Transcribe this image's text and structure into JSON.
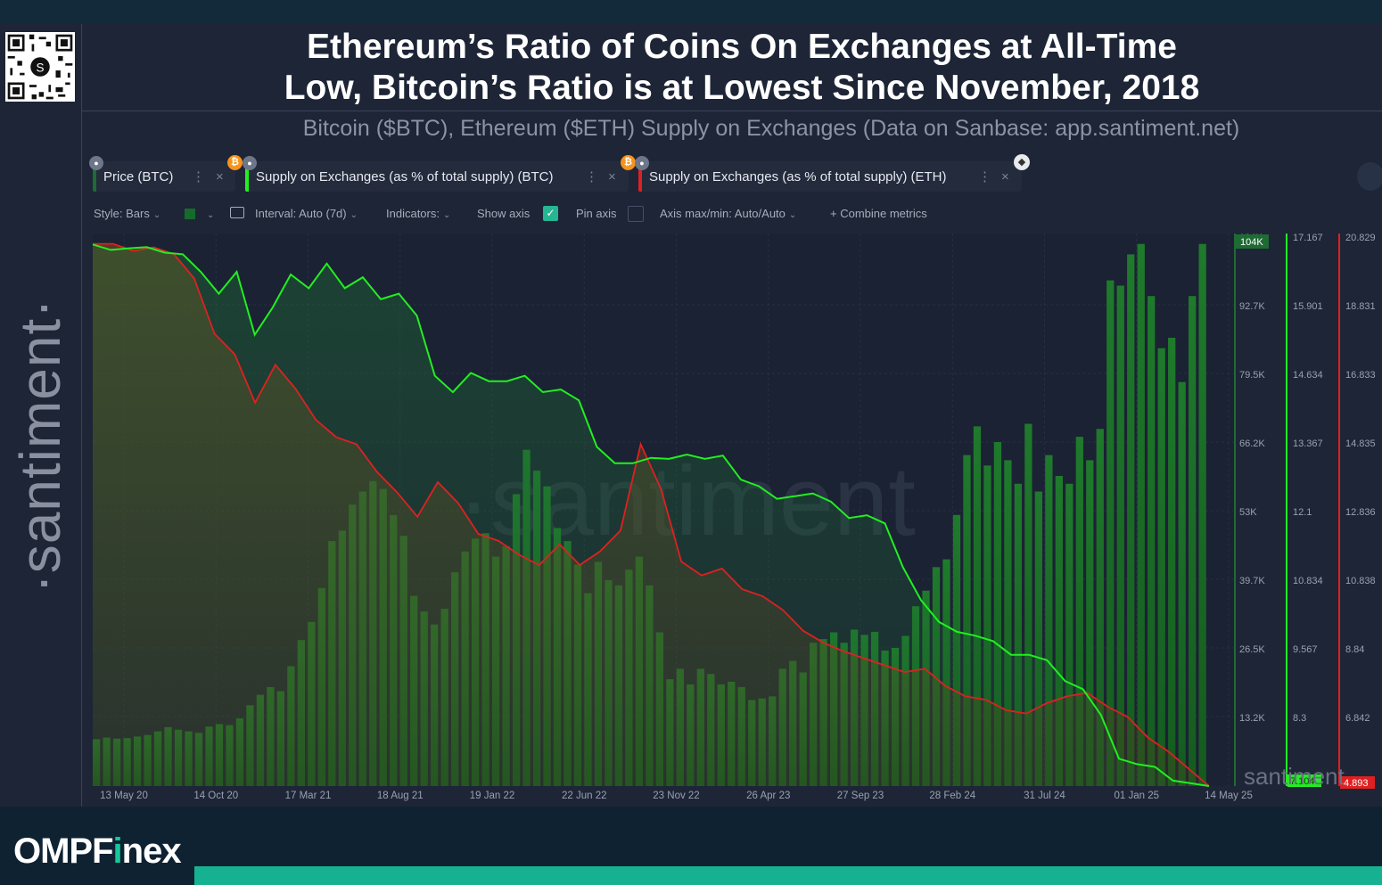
{
  "header": {
    "title_line1": "Ethereum’s Ratio of Coins On Exchanges at All-Time",
    "title_line2": "Low, Bitcoin’s Ratio is at Lowest Since November, 2018",
    "subtitle": "Bitcoin ($BTC), Ethereum ($ETH) Supply on Exchanges (Data on Sanbase: app.santiment.net)"
  },
  "brand": {
    "sidebar_text": "·santiment·",
    "watermark": "·santiment",
    "corner_watermark": "santiment",
    "footer_text_a": "OMPF",
    "footer_text_i": "i",
    "footer_text_b": "nex",
    "accent_color": "#16b191"
  },
  "metric_chips": [
    {
      "label": "Price (BTC)",
      "color": "#1e6b34"
    },
    {
      "label": "Supply on Exchanges (as % of total supply) (BTC)",
      "color": "#22ee22"
    },
    {
      "label": "Supply on Exchanges (as % of total supply) (ETH)",
      "color": "#e02020"
    }
  ],
  "chip_icons": {
    "lock": "lock-icon",
    "btc": "₿",
    "eth": "◆",
    "more": "⋮",
    "close": "×"
  },
  "toolbar": {
    "style": "Style: Bars",
    "interval": "Interval: Auto (7d)",
    "indicators": "Indicators:",
    "show_axis": "Show axis",
    "show_axis_checked": true,
    "pin_axis": "Pin axis",
    "pin_axis_checked": false,
    "axis_maxmin": "Axis max/min: Auto/Auto",
    "combine": "Combine metrics",
    "check_mark": "✓",
    "plus": "+"
  },
  "chart_data": {
    "type": "line",
    "title": "Bitcoin ($BTC), Ethereum ($ETH) Supply on Exchanges",
    "x_ticks": [
      "13 May 20",
      "14 Oct 20",
      "17 Mar 21",
      "18 Aug 21",
      "19 Jan 22",
      "22 Jun 22",
      "23 Nov 22",
      "26 Apr 23",
      "27 Sep 23",
      "28 Feb 24",
      "31 Jul 24",
      "01 Jan 25",
      "14 May 25"
    ],
    "axes": {
      "price_btc": {
        "ticks": [
          "104K",
          "92.7K",
          "79.5K",
          "66.2K",
          "53K",
          "39.7K",
          "26.5K",
          "13.2K"
        ],
        "ylim": [
          0,
          106000
        ],
        "last_label": "104K",
        "color": "#1e6b34"
      },
      "btc_supply_pct": {
        "ticks": [
          "17.167",
          "15.901",
          "14.634",
          "13.367",
          "12.1",
          "10.834",
          "9.567",
          "8.3"
        ],
        "ylim": [
          7.1,
          17.2
        ],
        "last_label": "7.104",
        "color": "#22ee22"
      },
      "eth_supply_pct": {
        "ticks": [
          "20.829",
          "18.831",
          "16.833",
          "14.835",
          "12.836",
          "10.838",
          "8.84",
          "6.842"
        ],
        "ylim": [
          4.9,
          20.9
        ],
        "last_label": "4.893",
        "color": "#e02020"
      }
    },
    "series": [
      {
        "name": "Price (BTC)",
        "type": "bar",
        "axis": "price_btc",
        "color": "#1e6b34",
        "values": [
          9000,
          9300,
          9100,
          9200,
          9500,
          9800,
          10500,
          11300,
          10800,
          10500,
          10200,
          11400,
          11900,
          11700,
          13000,
          15500,
          17500,
          19000,
          18200,
          23000,
          28000,
          31500,
          38000,
          47000,
          49000,
          54000,
          56500,
          58500,
          57000,
          52000,
          48000,
          36500,
          33500,
          31000,
          34000,
          41000,
          45000,
          47500,
          48500,
          44000,
          46000,
          56000,
          64500,
          60500,
          57500,
          49500,
          47000,
          42500,
          37000,
          43000,
          39500,
          38500,
          41500,
          44000,
          38500,
          29500,
          20500,
          22500,
          19500,
          22500,
          21500,
          19500,
          20000,
          19000,
          16500,
          16800,
          17200,
          22500,
          24000,
          21800,
          27500,
          28200,
          29500,
          27500,
          30000,
          29000,
          29600,
          26000,
          26500,
          28800,
          34500,
          37500,
          42000,
          43500,
          52000,
          63500,
          69000,
          61500,
          66000,
          62500,
          58000,
          69500,
          56500,
          63500,
          59500,
          58000,
          67000,
          62500,
          68500,
          97000,
          96000,
          102000,
          104000,
          94000,
          84000,
          86000,
          77500,
          94000,
          104000
        ]
      },
      {
        "name": "Supply on Exchanges (as % of total supply) (BTC)",
        "type": "line",
        "axis": "btc_supply_pct",
        "color": "#22ee22",
        "values": [
          17.0,
          16.9,
          16.93,
          16.95,
          16.85,
          16.82,
          16.5,
          16.1,
          16.5,
          15.35,
          15.85,
          16.45,
          16.2,
          16.65,
          16.2,
          16.4,
          16.0,
          16.1,
          15.7,
          14.6,
          14.3,
          14.65,
          14.5,
          14.5,
          14.6,
          14.3,
          14.35,
          14.15,
          13.3,
          13.0,
          13.0,
          13.1,
          13.08,
          13.16,
          13.08,
          13.14,
          12.7,
          12.58,
          12.35,
          12.4,
          12.45,
          12.3,
          12.0,
          12.05,
          11.9,
          11.1,
          10.5,
          10.1,
          9.92,
          9.85,
          9.75,
          9.5,
          9.5,
          9.4,
          9.02,
          8.87,
          8.4,
          7.6,
          7.5,
          7.45,
          7.2,
          7.15,
          7.1
        ]
      },
      {
        "name": "Supply on Exchanges (as % of total supply) (ETH)",
        "type": "line",
        "axis": "eth_supply_pct",
        "color": "#e02020",
        "values": [
          20.6,
          20.6,
          20.4,
          20.5,
          20.3,
          19.6,
          18.0,
          17.4,
          16.0,
          17.1,
          16.4,
          15.5,
          15.0,
          14.8,
          14.0,
          13.4,
          12.7,
          13.7,
          13.1,
          12.2,
          12.0,
          11.6,
          11.3,
          11.9,
          11.3,
          11.7,
          12.3,
          14.8,
          13.5,
          11.4,
          11.0,
          11.2,
          10.6,
          10.4,
          10.0,
          9.4,
          9.05,
          8.8,
          8.6,
          8.4,
          8.2,
          8.3,
          7.8,
          7.5,
          7.4,
          7.1,
          7.0,
          7.3,
          7.5,
          7.6,
          7.2,
          6.9,
          6.3,
          5.9,
          5.4,
          4.9
        ]
      }
    ]
  }
}
